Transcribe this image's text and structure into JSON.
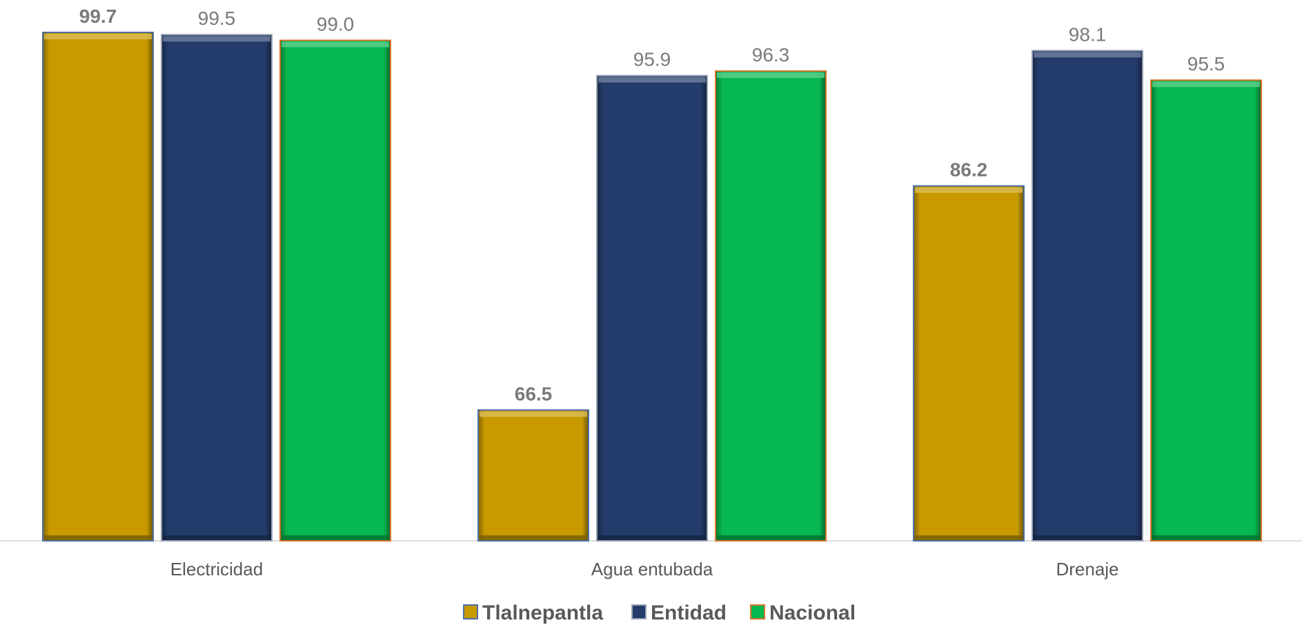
{
  "chart_data": {
    "type": "bar",
    "title": "",
    "xlabel": "",
    "ylabel": "",
    "categories": [
      "Electricidad",
      "Agua entubada",
      "Drenaje"
    ],
    "series": [
      {
        "name": "Tlalnepantla",
        "values": [
          99.7,
          66.5,
          86.2
        ],
        "labels": [
          "99.7",
          "66.5",
          "86.2"
        ],
        "color": "#C89A00",
        "edge": "#4A6FA8",
        "bold_labels": true
      },
      {
        "name": "Entidad",
        "values": [
          99.5,
          95.9,
          98.1
        ],
        "labels": [
          "99.5",
          "95.9",
          "98.1"
        ],
        "color": "#243C6B",
        "edge": "#9AA3B5",
        "bold_labels": false
      },
      {
        "name": "Nacional",
        "values": [
          99.0,
          96.3,
          95.5
        ],
        "labels": [
          "99.0",
          "96.3",
          "95.5"
        ],
        "color": "#07B74F",
        "edge": "#D9762A",
        "bold_labels": false
      }
    ],
    "ylim": [
      55,
      100
    ],
    "grid": false,
    "legend_position": "bottom-center"
  }
}
